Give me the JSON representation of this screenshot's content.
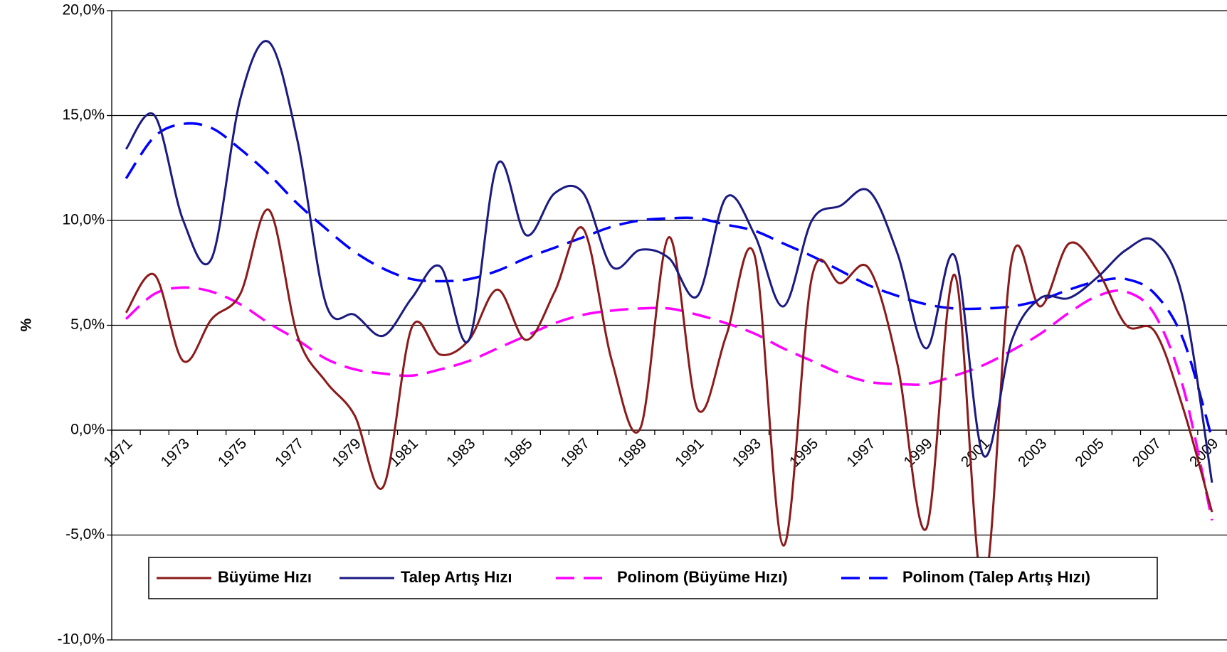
{
  "chart_data": {
    "type": "line",
    "ylabel": "%",
    "categories": [
      "1971",
      null,
      "1973",
      null,
      "1975",
      null,
      "1977",
      null,
      "1979",
      null,
      "1981",
      null,
      "1983",
      null,
      "1985",
      null,
      "1987",
      null,
      "1989",
      null,
      "1991",
      null,
      "1993",
      null,
      "1995",
      null,
      "1997",
      null,
      "1999",
      null,
      "2001",
      null,
      "2003",
      null,
      "2005",
      null,
      "2007",
      null,
      "2009"
    ],
    "ylim": [
      -10,
      20
    ],
    "yticks": [
      {
        "value": -10,
        "label": "-10,0%"
      },
      {
        "value": -5,
        "label": "-5,0%"
      },
      {
        "value": 0,
        "label": "0,0%"
      },
      {
        "value": 5,
        "label": "5,0%"
      },
      {
        "value": 10,
        "label": "10,0%"
      },
      {
        "value": 15,
        "label": "15,0%"
      },
      {
        "value": 20,
        "label": "20,0%"
      }
    ],
    "grid": true,
    "legend": "bottom",
    "series": [
      {
        "name": "Büyüme Hızı",
        "color": "#8b1a1a",
        "dash": false,
        "values": [
          5.6,
          7.4,
          3.3,
          5.3,
          6.5,
          10.5,
          4.5,
          2.3,
          0.7,
          -2.7,
          4.9,
          3.6,
          4.3,
          6.7,
          4.3,
          6.6,
          9.6,
          3.3,
          0.1,
          9.2,
          1.0,
          4.5,
          8.3,
          -5.5,
          7.3,
          7.0,
          7.7,
          3.1,
          -4.7,
          7.4,
          -7.5,
          8.2,
          5.9,
          8.9,
          7.6,
          5.0,
          4.7,
          1.0,
          -3.9
        ]
      },
      {
        "name": "Talep Artış Hızı",
        "color": "#1a1a80",
        "dash": false,
        "values": [
          13.4,
          15.0,
          10.0,
          8.2,
          15.8,
          18.5,
          13.8,
          6.0,
          5.5,
          4.5,
          6.3,
          7.8,
          4.3,
          12.7,
          9.3,
          11.3,
          11.3,
          7.8,
          8.6,
          8.2,
          6.4,
          11.1,
          9.3,
          5.9,
          10.0,
          10.7,
          11.4,
          8.4,
          3.9,
          8.3,
          -1.2,
          4.3,
          6.3,
          6.3,
          7.3,
          8.6,
          9.0,
          6.2,
          -2.5
        ]
      },
      {
        "name": "Polinom (Büyüme Hızı)",
        "color": "#ff00ff",
        "dash": true,
        "values": [
          5.3,
          6.5,
          6.8,
          6.6,
          6.0,
          5.1,
          4.3,
          3.4,
          2.9,
          2.7,
          2.6,
          2.9,
          3.3,
          3.9,
          4.5,
          5.1,
          5.5,
          5.7,
          5.8,
          5.8,
          5.5,
          5.1,
          4.6,
          3.9,
          3.3,
          2.7,
          2.3,
          2.2,
          2.2,
          2.6,
          3.1,
          3.8,
          4.6,
          5.6,
          6.4,
          6.6,
          5.5,
          2.0,
          -4.3
        ]
      },
      {
        "name": "Polinom (Talep Artış Hızı)",
        "color": "#0000ff",
        "dash": true,
        "values": [
          12.0,
          14.0,
          14.6,
          14.4,
          13.4,
          12.2,
          10.8,
          9.6,
          8.5,
          7.7,
          7.2,
          7.1,
          7.2,
          7.6,
          8.2,
          8.7,
          9.2,
          9.7,
          10.0,
          10.1,
          10.1,
          9.8,
          9.5,
          8.9,
          8.3,
          7.6,
          6.9,
          6.4,
          6.0,
          5.8,
          5.8,
          5.9,
          6.2,
          6.7,
          7.1,
          7.2,
          6.5,
          4.3,
          -0.4
        ]
      }
    ]
  }
}
